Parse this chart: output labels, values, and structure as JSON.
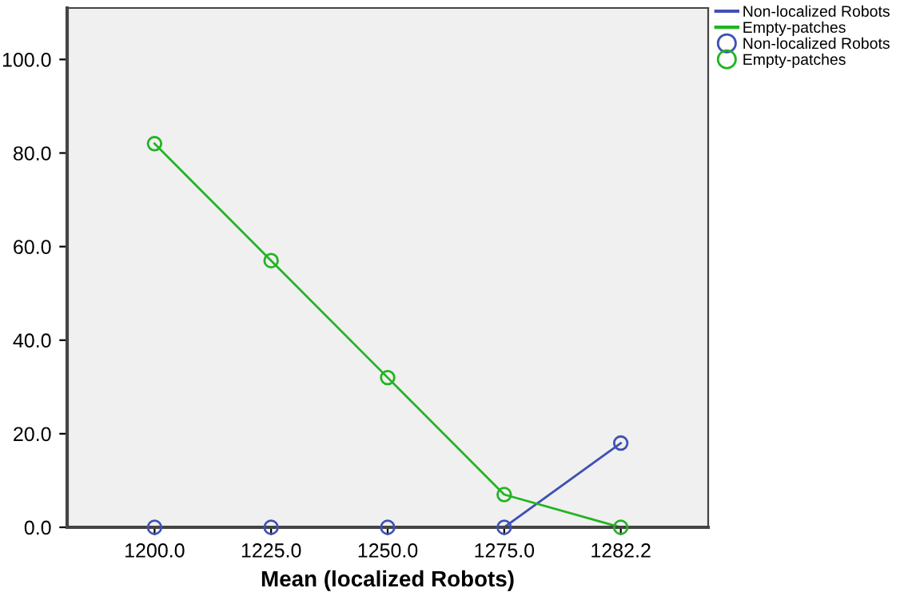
{
  "chart_data": {
    "type": "line",
    "xlabel": "Mean (localized Robots)",
    "categories": [
      "1200.0",
      "1225.0",
      "1250.0",
      "1275.0",
      "1282.2"
    ],
    "series": [
      {
        "name": "Non-localized Robots",
        "color": "#3f51b5",
        "values": [
          0,
          0,
          0,
          0,
          18
        ]
      },
      {
        "name": "Empty-patches",
        "color": "#22b422",
        "values": [
          82,
          57,
          32,
          7,
          0
        ]
      }
    ],
    "ylim": [
      0,
      111
    ],
    "yticks": [
      {
        "value": 0,
        "label": "0.0"
      },
      {
        "value": 20,
        "label": "20.0"
      },
      {
        "value": 40,
        "label": "40.0"
      },
      {
        "value": 60,
        "label": "60.0"
      },
      {
        "value": 80,
        "label": "80.0"
      },
      {
        "value": 100,
        "label": "100.0"
      }
    ],
    "marker": "circle",
    "grid": false,
    "legend": "top right"
  }
}
